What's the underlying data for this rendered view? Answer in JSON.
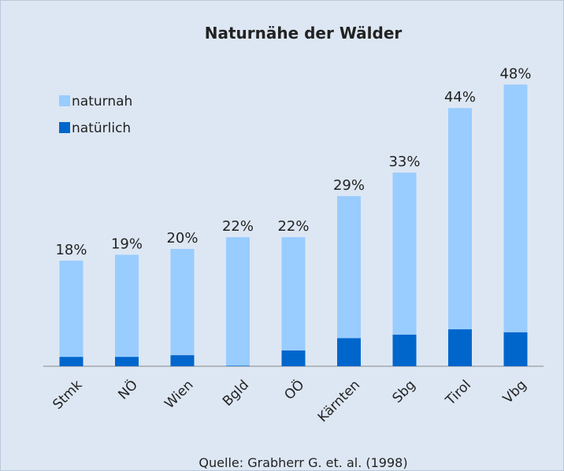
{
  "chart_data": {
    "type": "stacked_bar",
    "title": "Naturnähe der Wälder",
    "categories": [
      "Stmk",
      "NÖ",
      "Wien",
      "Bgld",
      "OÖ",
      "Kärnten",
      "Sbg",
      "Tirol",
      "Vbg"
    ],
    "series": [
      {
        "name": "natürlich",
        "color": "#0066cc",
        "values": [
          1.6,
          1.6,
          1.9,
          0.1,
          2.7,
          4.8,
          5.4,
          6.3,
          5.8
        ]
      },
      {
        "name": "naturnah",
        "color": "#99ccff",
        "values": [
          16.4,
          17.4,
          18.1,
          21.9,
          19.3,
          24.2,
          27.6,
          37.7,
          42.2
        ]
      }
    ],
    "totals": {
      "values": [
        18,
        19,
        20,
        22,
        22,
        29,
        33,
        44,
        48
      ],
      "value_labels": [
        "18%",
        "19%",
        "20%",
        "22%",
        "22%",
        "29%",
        "33%",
        "44%",
        "48%"
      ]
    },
    "legend": "top-left",
    "source": "Quelle: Grabherr G. et. al. (1998)"
  }
}
